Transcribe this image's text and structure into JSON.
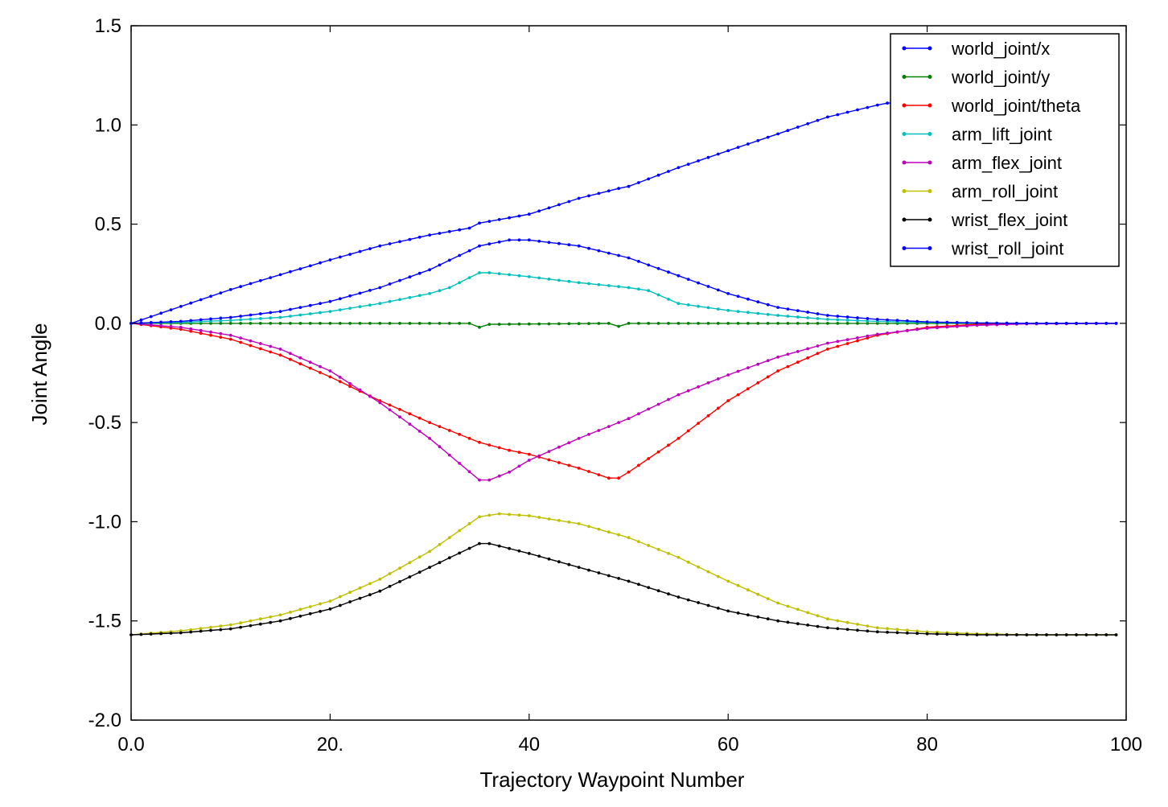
{
  "chart_data": {
    "type": "line",
    "title": "",
    "xlabel": "Trajectory Waypoint Number",
    "ylabel": "Joint Angle",
    "xlim": [
      0,
      100
    ],
    "ylim": [
      -2.0,
      1.5
    ],
    "xticks": [
      0,
      20,
      40,
      60,
      80,
      100
    ],
    "xtick_labels": [
      "0.0",
      "20.",
      "40",
      "60",
      "80",
      "100"
    ],
    "yticks": [
      1.5,
      1.0,
      0.5,
      0.0,
      -0.5,
      -1.0,
      -1.5,
      -2.0
    ],
    "ytick_labels": [
      "1.5",
      "1.0",
      "0.5",
      "0.0",
      "-0.5",
      "-1.0",
      "-1.5",
      "-2.0"
    ],
    "grid": false,
    "legend_position": "top-right",
    "x_step": 1,
    "series": [
      {
        "name": "world_joint/x",
        "color": "#0000ff",
        "x": [
          0,
          5,
          10,
          15,
          20,
          25,
          30,
          34,
          35,
          40,
          45,
          49,
          50,
          55,
          60,
          65,
          70,
          75,
          76,
          78,
          80,
          85,
          90,
          95,
          99
        ],
        "y": [
          0,
          0.085,
          0.17,
          0.245,
          0.32,
          0.39,
          0.445,
          0.48,
          0.505,
          0.55,
          0.63,
          0.68,
          0.69,
          0.785,
          0.87,
          0.955,
          1.04,
          1.1,
          1.11,
          1.115,
          1.12,
          1.14,
          1.16,
          1.18,
          1.2
        ]
      },
      {
        "name": "world_joint/y",
        "color": "#008000",
        "x": [
          0,
          34,
          35,
          36,
          48,
          49,
          50,
          99
        ],
        "y": [
          0,
          0,
          -0.02,
          -0.005,
          0,
          -0.015,
          0,
          0
        ]
      },
      {
        "name": "world_joint/theta",
        "color": "#ff0000",
        "x": [
          0,
          5,
          10,
          15,
          20,
          25,
          30,
          35,
          38,
          40,
          45,
          48,
          49,
          50,
          55,
          60,
          65,
          70,
          75,
          80,
          85,
          90,
          99
        ],
        "y": [
          0,
          -0.03,
          -0.08,
          -0.16,
          -0.27,
          -0.39,
          -0.5,
          -0.6,
          -0.64,
          -0.66,
          -0.73,
          -0.78,
          -0.78,
          -0.75,
          -0.58,
          -0.39,
          -0.24,
          -0.13,
          -0.06,
          -0.02,
          -0.005,
          0,
          0
        ]
      },
      {
        "name": "arm_lift_joint",
        "color": "#00bfbf",
        "x": [
          0,
          5,
          10,
          15,
          20,
          25,
          30,
          32,
          35,
          36,
          40,
          45,
          50,
          52,
          55,
          60,
          65,
          70,
          75,
          80,
          85,
          90,
          99
        ],
        "y": [
          0,
          0.005,
          0.015,
          0.03,
          0.06,
          0.1,
          0.15,
          0.18,
          0.255,
          0.255,
          0.235,
          0.205,
          0.18,
          0.165,
          0.1,
          0.065,
          0.04,
          0.02,
          0.01,
          0.005,
          0.002,
          0,
          0
        ]
      },
      {
        "name": "arm_flex_joint",
        "color": "#bf00bf",
        "x": [
          0,
          5,
          10,
          15,
          20,
          25,
          30,
          35,
          36,
          38,
          40,
          45,
          50,
          55,
          60,
          65,
          70,
          75,
          80,
          85,
          90,
          99
        ],
        "y": [
          0,
          -0.02,
          -0.06,
          -0.13,
          -0.24,
          -0.4,
          -0.58,
          -0.79,
          -0.79,
          -0.75,
          -0.69,
          -0.58,
          -0.48,
          -0.36,
          -0.26,
          -0.17,
          -0.1,
          -0.055,
          -0.025,
          -0.01,
          -0.003,
          0
        ]
      },
      {
        "name": "arm_roll_joint",
        "color": "#bfbf00",
        "x": [
          0,
          5,
          10,
          15,
          20,
          25,
          30,
          35,
          37,
          40,
          45,
          50,
          55,
          60,
          65,
          70,
          75,
          80,
          85,
          90,
          95,
          99
        ],
        "y": [
          -1.57,
          -1.55,
          -1.52,
          -1.47,
          -1.4,
          -1.29,
          -1.15,
          -0.975,
          -0.96,
          -0.97,
          -1.01,
          -1.08,
          -1.18,
          -1.3,
          -1.41,
          -1.49,
          -1.535,
          -1.555,
          -1.565,
          -1.57,
          -1.57,
          -1.57
        ]
      },
      {
        "name": "wrist_flex_joint",
        "color": "#000000",
        "x": [
          0,
          5,
          10,
          15,
          20,
          25,
          30,
          35,
          36,
          40,
          45,
          50,
          55,
          60,
          65,
          70,
          75,
          80,
          85,
          90,
          95,
          99
        ],
        "y": [
          -1.57,
          -1.56,
          -1.54,
          -1.5,
          -1.44,
          -1.35,
          -1.23,
          -1.11,
          -1.11,
          -1.16,
          -1.23,
          -1.3,
          -1.38,
          -1.45,
          -1.5,
          -1.535,
          -1.555,
          -1.565,
          -1.57,
          -1.57,
          -1.57,
          -1.57
        ]
      },
      {
        "name": "wrist_roll_joint",
        "color": "#0000ff",
        "x": [
          0,
          5,
          10,
          15,
          20,
          25,
          30,
          35,
          38,
          40,
          45,
          50,
          55,
          60,
          65,
          70,
          75,
          80,
          85,
          90,
          99
        ],
        "y": [
          0,
          0.01,
          0.03,
          0.06,
          0.11,
          0.18,
          0.27,
          0.39,
          0.42,
          0.42,
          0.39,
          0.33,
          0.24,
          0.15,
          0.08,
          0.04,
          0.02,
          0.007,
          0.002,
          0,
          0
        ]
      }
    ]
  }
}
